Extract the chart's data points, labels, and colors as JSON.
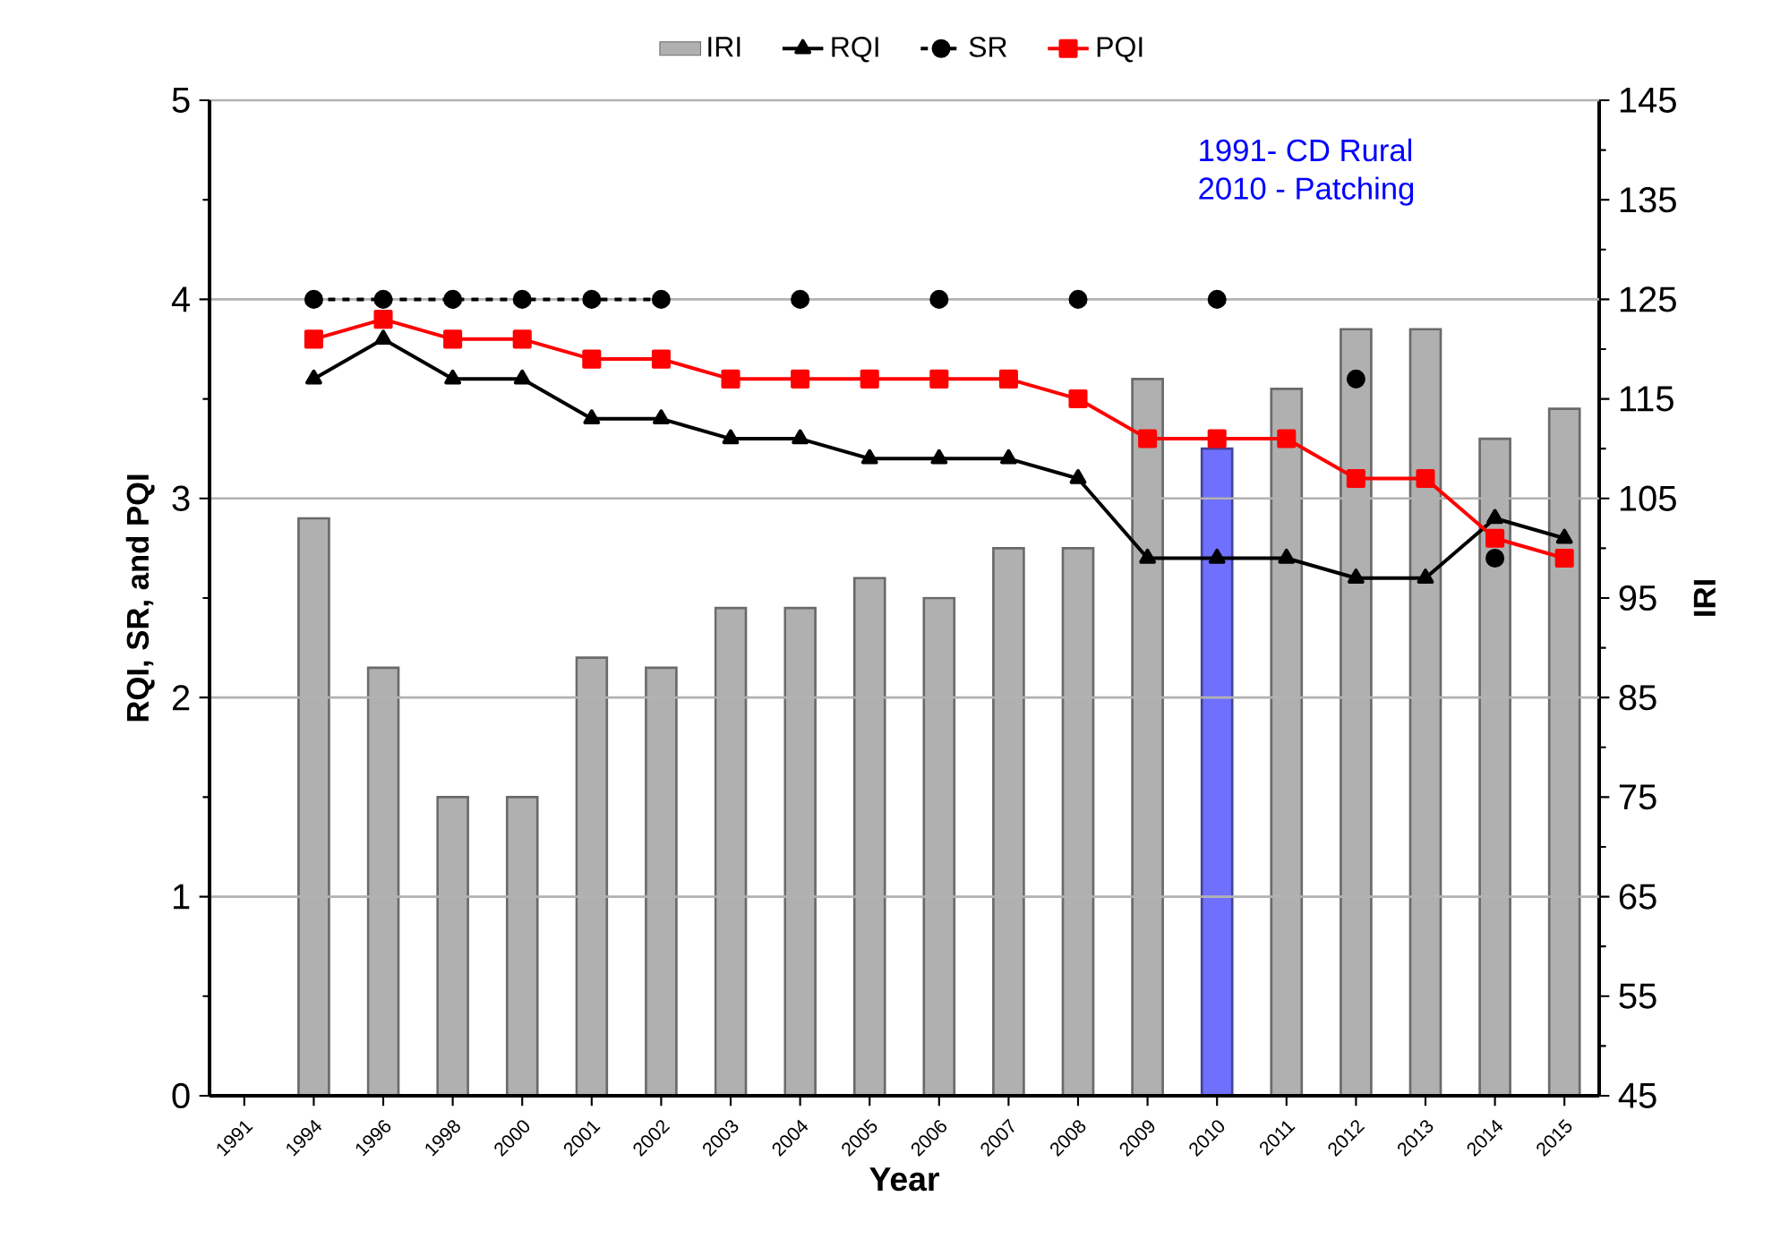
{
  "chart_data": {
    "type": "bar",
    "categories": [
      "1991",
      "1994",
      "1996",
      "1998",
      "2000",
      "2001",
      "2002",
      "2003",
      "2004",
      "2005",
      "2006",
      "2007",
      "2008",
      "2009",
      "2010",
      "2011",
      "2012",
      "2013",
      "2014",
      "2015"
    ],
    "series": [
      {
        "name": "IRI",
        "axis": "y2",
        "colors": [
          "#b0b0b0",
          "#b0b0b0",
          "#b0b0b0",
          "#b0b0b0",
          "#b0b0b0",
          "#b0b0b0",
          "#b0b0b0",
          "#b0b0b0",
          "#b0b0b0",
          "#b0b0b0",
          "#b0b0b0",
          "#b0b0b0",
          "#b0b0b0",
          "#b0b0b0",
          "#7070ff",
          "#b0b0b0",
          "#b0b0b0",
          "#b0b0b0",
          "#b0b0b0",
          "#b0b0b0"
        ],
        "values": [
          null,
          103,
          88,
          75,
          75,
          89,
          88,
          94,
          94,
          97,
          95,
          100,
          100,
          117,
          110,
          116,
          122,
          122,
          111,
          114
        ]
      },
      {
        "name": "RQI",
        "type": "line",
        "color": "#000000",
        "marker": "triangle",
        "line_style": "solid",
        "values": [
          null,
          3.6,
          3.8,
          3.6,
          3.6,
          3.4,
          3.4,
          3.3,
          3.3,
          3.2,
          3.2,
          3.2,
          3.1,
          2.7,
          2.7,
          2.7,
          2.6,
          2.6,
          2.9,
          2.8
        ]
      },
      {
        "name": "SR",
        "type": "line",
        "color": "#000000",
        "marker": "circle",
        "line_style": "dashed",
        "values": [
          null,
          4,
          4,
          4,
          4,
          4,
          4,
          null,
          4,
          null,
          4,
          null,
          4,
          null,
          4,
          null,
          3.6,
          null,
          2.7,
          null
        ]
      },
      {
        "name": "PQI",
        "type": "line",
        "color": "#ff0000",
        "marker": "square",
        "line_style": "solid",
        "values": [
          null,
          3.8,
          3.9,
          3.8,
          3.8,
          3.7,
          3.7,
          3.6,
          3.6,
          3.6,
          3.6,
          3.6,
          3.5,
          3.3,
          3.3,
          3.3,
          3.1,
          3.1,
          2.8,
          2.7
        ]
      }
    ],
    "ylim": [
      0,
      5
    ],
    "yticks": [
      0,
      1,
      2,
      3,
      4,
      5
    ],
    "y2lim": [
      45,
      145
    ],
    "y2ticks": [
      45,
      55,
      65,
      75,
      85,
      95,
      105,
      115,
      125,
      135,
      145
    ],
    "xlabel": "Year",
    "ylabel": "RQI, SR, and PQI",
    "y2label": "IRI",
    "grid": "y",
    "legend": "top",
    "annotations": [
      "1991- CD Rural",
      "2010 - Patching"
    ]
  }
}
